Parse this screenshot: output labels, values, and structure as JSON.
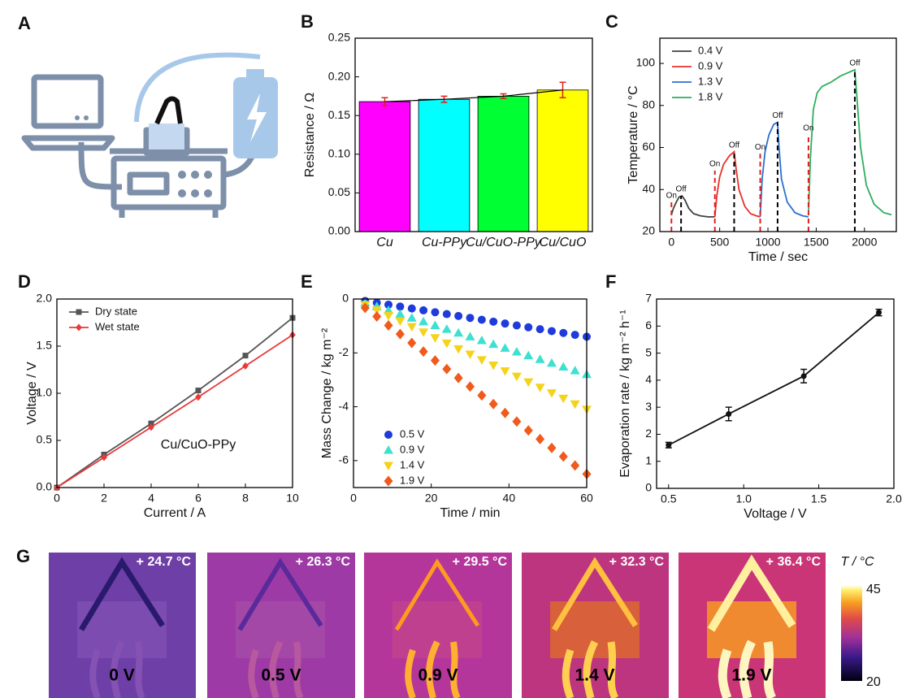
{
  "chart_data": [
    {
      "type": "bar",
      "panel": "B",
      "ylabel": "Resistance / Ω",
      "categories": [
        "Cu",
        "Cu-PPy",
        "Cu/CuO-PPy",
        "Cu/CuO"
      ],
      "values": [
        0.168,
        0.171,
        0.175,
        0.183
      ],
      "errors": [
        0.005,
        0.004,
        0.003,
        0.01
      ],
      "colors": [
        "#ff00ff",
        "#00ffff",
        "#00ff33",
        "#ffff00"
      ],
      "error_color": "#e0201e",
      "trend_line": true,
      "ylim": [
        0,
        0.25
      ],
      "yticks": [
        {
          "value": 0,
          "label": "0.00"
        },
        0.05,
        {
          "value": 0.1,
          "label": "0.10"
        },
        0.15,
        {
          "value": 0.2,
          "label": "0.20"
        },
        0.25
      ]
    },
    {
      "type": "line",
      "panel": "C",
      "xlabel": "Time / sec",
      "ylabel": "Temperature / °C",
      "legend": "upper left",
      "xlim": [
        -120,
        2330
      ],
      "xticks": [
        0,
        500,
        1000,
        1500,
        2000
      ],
      "ylim": [
        20,
        112
      ],
      "yticks": [
        20,
        40,
        60,
        80,
        100
      ],
      "series": [
        {
          "name": "0.4 V",
          "color": "#404040",
          "x": [
            0,
            20,
            50,
            80,
            110,
            140,
            180,
            230,
            300,
            380,
            450
          ],
          "values": [
            28,
            31,
            34,
            36.5,
            37,
            35,
            31,
            28.5,
            27.5,
            27,
            27
          ]
        },
        {
          "name": "0.9 V",
          "color": "#e8302b",
          "x": [
            450,
            470,
            500,
            540,
            600,
            650,
            670,
            700,
            760,
            820,
            880,
            920
          ],
          "values": [
            27,
            37,
            46,
            52,
            56,
            58,
            50,
            40,
            32,
            28.5,
            27.5,
            27
          ]
        },
        {
          "name": "1.3 V",
          "color": "#2a6fcf",
          "x": [
            920,
            940,
            970,
            1010,
            1060,
            1100,
            1115,
            1140,
            1200,
            1280,
            1360,
            1420
          ],
          "values": [
            27,
            45,
            58,
            66,
            71,
            72,
            60,
            45,
            34,
            29,
            27.5,
            27
          ]
        },
        {
          "name": "1.8 V",
          "color": "#2fae5f",
          "x": [
            1420,
            1440,
            1470,
            1510,
            1560,
            1650,
            1750,
            1850,
            1900,
            1920,
            1960,
            2020,
            2100,
            2200,
            2280
          ],
          "values": [
            28,
            55,
            78,
            86,
            89,
            91,
            94,
            96,
            97,
            85,
            60,
            42,
            33,
            29,
            28
          ]
        }
      ],
      "annotations": [
        {
          "text": "On",
          "x": 0,
          "y": 34,
          "color": "#e0201e",
          "dashed": true
        },
        {
          "text": "Off",
          "x": 100,
          "y": 37,
          "color": "#000000",
          "dashed": true
        },
        {
          "text": "On",
          "x": 450,
          "y": 49,
          "color": "#e0201e",
          "dashed": true
        },
        {
          "text": "Off",
          "x": 650,
          "y": 58,
          "color": "#000000",
          "dashed": true
        },
        {
          "text": "On",
          "x": 920,
          "y": 57,
          "color": "#e0201e",
          "dashed": true
        },
        {
          "text": "Off",
          "x": 1100,
          "y": 72,
          "color": "#000000",
          "dashed": true
        },
        {
          "text": "On",
          "x": 1420,
          "y": 66,
          "color": "#e0201e",
          "dashed": true
        },
        {
          "text": "Off",
          "x": 1900,
          "y": 97,
          "color": "#000000",
          "dashed": true
        }
      ]
    },
    {
      "type": "line",
      "panel": "D",
      "xlabel": "Current / A",
      "ylabel": "Voltage / V",
      "legend": "upper left",
      "xlim": [
        0,
        10
      ],
      "xticks": [
        0,
        2,
        4,
        6,
        8,
        10
      ],
      "ylim": [
        0,
        2
      ],
      "yticks": [
        {
          "value": 0,
          "label": "0.0"
        },
        0.5,
        {
          "value": 1,
          "label": "1.0"
        },
        1.5,
        {
          "value": 2,
          "label": "2.0"
        }
      ],
      "x": [
        0,
        2,
        4,
        6,
        8,
        10
      ],
      "series": [
        {
          "name": "Dry state",
          "color": "#555555",
          "marker": "square",
          "values": [
            0,
            0.35,
            0.68,
            1.03,
            1.4,
            1.8
          ]
        },
        {
          "name": "Wet state",
          "color": "#e83a3a",
          "marker": "diamond",
          "values": [
            0,
            0.32,
            0.64,
            0.96,
            1.29,
            1.62
          ]
        }
      ],
      "annotations": [
        {
          "text": "Cu/CuO-PPy",
          "x": 6,
          "y": 0.45
        }
      ]
    },
    {
      "type": "scatter",
      "panel": "E",
      "xlabel": "Time / min",
      "ylabel": "Mass Change / kg m⁻²",
      "legend": "lower left",
      "xlim": [
        0,
        60
      ],
      "xticks": [
        0,
        20,
        40,
        60
      ],
      "ylim": [
        -7,
        0
      ],
      "yticks": [
        0,
        -2,
        -4,
        -6
      ],
      "x": [
        3,
        6,
        9,
        12,
        15,
        18,
        21,
        24,
        27,
        30,
        33,
        36,
        39,
        42,
        45,
        48,
        51,
        54,
        57,
        60
      ],
      "series": [
        {
          "name": "0.5 V",
          "color": "#1f3bdb",
          "marker": "circle",
          "values": [
            -0.07,
            -0.14,
            -0.21,
            -0.28,
            -0.35,
            -0.42,
            -0.49,
            -0.56,
            -0.63,
            -0.7,
            -0.77,
            -0.84,
            -0.91,
            -0.98,
            -1.05,
            -1.12,
            -1.19,
            -1.26,
            -1.33,
            -1.4
          ]
        },
        {
          "name": "0.9 V",
          "color": "#3ee0d0",
          "marker": "triangle-up",
          "values": [
            -0.14,
            -0.28,
            -0.42,
            -0.56,
            -0.7,
            -0.84,
            -0.98,
            -1.12,
            -1.26,
            -1.4,
            -1.54,
            -1.68,
            -1.82,
            -1.96,
            -2.1,
            -2.24,
            -2.38,
            -2.52,
            -2.66,
            -2.8
          ]
        },
        {
          "name": "1.4 V",
          "color": "#f5d31b",
          "marker": "triangle-down",
          "values": [
            -0.21,
            -0.41,
            -0.62,
            -0.82,
            -1.03,
            -1.23,
            -1.44,
            -1.64,
            -1.85,
            -2.05,
            -2.26,
            -2.46,
            -2.67,
            -2.87,
            -3.08,
            -3.28,
            -3.49,
            -3.69,
            -3.9,
            -4.1
          ]
        },
        {
          "name": "1.9 V",
          "color": "#f05a1c",
          "marker": "diamond",
          "values": [
            -0.33,
            -0.65,
            -0.98,
            -1.3,
            -1.63,
            -1.95,
            -2.28,
            -2.6,
            -2.93,
            -3.25,
            -3.58,
            -3.9,
            -4.23,
            -4.55,
            -4.88,
            -5.2,
            -5.53,
            -5.85,
            -6.18,
            -6.5
          ]
        }
      ]
    },
    {
      "type": "line",
      "panel": "F",
      "xlabel": "Voltage / V",
      "ylabel": "Evaporation rate / kg m⁻² h⁻¹",
      "xlim": [
        0.42,
        2.0
      ],
      "xticks": [
        0.5,
        {
          "value": 1,
          "label": "1.0"
        },
        1.5,
        {
          "value": 2,
          "label": "2.0"
        }
      ],
      "ylim": [
        0,
        7
      ],
      "yticks": [
        0,
        1,
        2,
        3,
        4,
        5,
        6,
        7
      ],
      "x": [
        0.5,
        0.9,
        1.4,
        1.9
      ],
      "values": [
        1.6,
        2.75,
        4.15,
        6.5
      ],
      "errors": [
        0.1,
        0.25,
        0.25,
        0.12
      ],
      "color": "#111111",
      "marker": "circle"
    }
  ],
  "illustration": {
    "panel": "A"
  },
  "thermal": {
    "panel": "G",
    "images": [
      {
        "delta": "+ 24.7 °C",
        "voltage": "0 V"
      },
      {
        "delta": "+ 26.3 °C",
        "voltage": "0.5 V"
      },
      {
        "delta": "+ 29.5 °C",
        "voltage": "0.9 V"
      },
      {
        "delta": "+ 32.3 °C",
        "voltage": "1.4 V"
      },
      {
        "delta": "+ 36.4 °C",
        "voltage": "1.9 V"
      }
    ],
    "colorbar": {
      "label": "T / °C",
      "max": 45,
      "min": 20
    }
  }
}
